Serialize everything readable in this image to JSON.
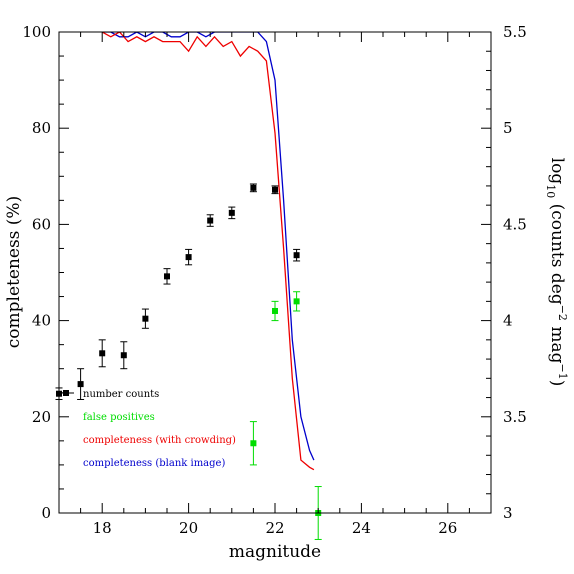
{
  "chart_data": {
    "type": "line",
    "xlabel": "magnitude",
    "ylabel_left": "completeness (%)",
    "ylabel_right_parts": [
      "log",
      "10",
      " (counts deg",
      "−2",
      " mag",
      "−1",
      ")"
    ],
    "xlim": [
      17,
      27
    ],
    "ylim_left": [
      0,
      100
    ],
    "ylim_right": [
      3,
      5.5
    ],
    "x_ticks": [
      18,
      20,
      22,
      24,
      26
    ],
    "y_left_ticks": [
      0,
      20,
      40,
      60,
      80,
      100
    ],
    "y_right_ticks": [
      "3",
      "3.5",
      "4",
      "4.5",
      "5",
      "5.5"
    ],
    "grid": false,
    "legend_position": "bottom-left",
    "series": [
      {
        "name": "completeness (blank image)",
        "kind": "line",
        "color": "#0000cc",
        "x": [
          18.0,
          18.2,
          18.4,
          18.6,
          18.8,
          19.0,
          19.2,
          19.4,
          19.6,
          19.8,
          20.0,
          20.2,
          20.4,
          20.6,
          20.8,
          21.0,
          21.2,
          21.4,
          21.6,
          21.8,
          22.0,
          22.2,
          22.4,
          22.6,
          22.8,
          22.9
        ],
        "y": [
          100,
          100,
          99,
          99,
          100,
          99,
          100,
          100,
          99,
          99,
          100,
          100,
          99,
          100,
          100,
          100,
          100,
          100,
          100,
          98,
          90,
          65,
          36,
          20,
          13,
          11
        ]
      },
      {
        "name": "completeness (with crowding)",
        "kind": "line",
        "color": "#ee0000",
        "x": [
          18.0,
          18.2,
          18.4,
          18.6,
          18.8,
          19.0,
          19.2,
          19.4,
          19.6,
          19.8,
          20.0,
          20.2,
          20.4,
          20.6,
          20.8,
          21.0,
          21.2,
          21.4,
          21.6,
          21.8,
          22.0,
          22.2,
          22.4,
          22.6,
          22.8,
          22.9
        ],
        "y": [
          100,
          99,
          100,
          98,
          99,
          98,
          99,
          98,
          98,
          98,
          96,
          99,
          97,
          99,
          97,
          98,
          95,
          97,
          96,
          94,
          79,
          55,
          28,
          11,
          9.5,
          9
        ]
      },
      {
        "name": "number counts",
        "kind": "points",
        "color": "#000000",
        "axis": "right",
        "x": [
          17.0,
          17.5,
          18.0,
          18.5,
          19.0,
          19.5,
          20.0,
          20.5,
          21.0,
          21.5,
          22.0,
          22.5
        ],
        "y": [
          3.62,
          3.67,
          3.83,
          3.82,
          4.01,
          4.23,
          4.33,
          4.52,
          4.56,
          4.69,
          4.68,
          4.34
        ],
        "err": [
          0.03,
          0.08,
          0.07,
          0.07,
          0.05,
          0.04,
          0.04,
          0.03,
          0.03,
          0.02,
          0.02,
          0.03
        ]
      },
      {
        "name": "false positives",
        "kind": "points",
        "color": "#00dd00",
        "axis": "left",
        "x": [
          21.5,
          22.0,
          22.5,
          23.0
        ],
        "y": [
          14.5,
          42,
          44,
          0
        ],
        "err": [
          4.5,
          2,
          2,
          5.5
        ]
      }
    ],
    "legend_order": [
      "number counts",
      "false positives",
      "completeness (with crowding)",
      "completeness (blank image)"
    ]
  }
}
